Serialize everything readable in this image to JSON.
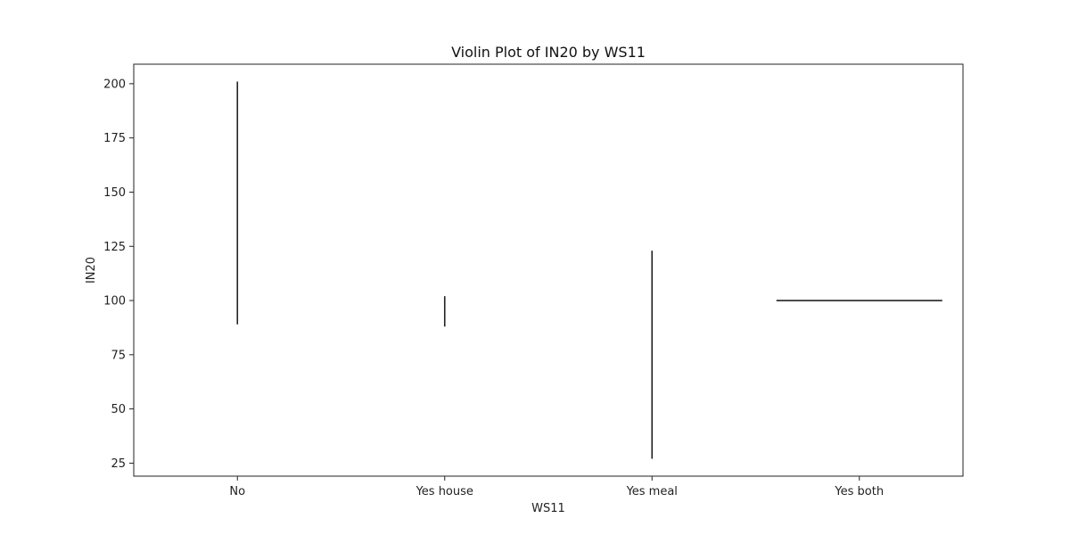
{
  "chart_data": {
    "type": "violin",
    "title": "Violin Plot of IN20 by WS11",
    "xlabel": "WS11",
    "ylabel": "IN20",
    "categories": [
      "No",
      "Yes house",
      "Yes meal",
      "Yes both"
    ],
    "ylim": [
      19,
      209
    ],
    "yticks": [
      25,
      50,
      75,
      100,
      125,
      150,
      175,
      200
    ],
    "grid": false,
    "legend": "none",
    "color": "#222222",
    "violins": [
      {
        "category": "No",
        "shape": "line",
        "min": 89,
        "max": 201
      },
      {
        "category": "Yes house",
        "shape": "line",
        "min": 88,
        "max": 102
      },
      {
        "category": "Yes meal",
        "shape": "line",
        "min": 27,
        "max": 123
      },
      {
        "category": "Yes both",
        "shape": "flat",
        "value": 100
      }
    ]
  }
}
